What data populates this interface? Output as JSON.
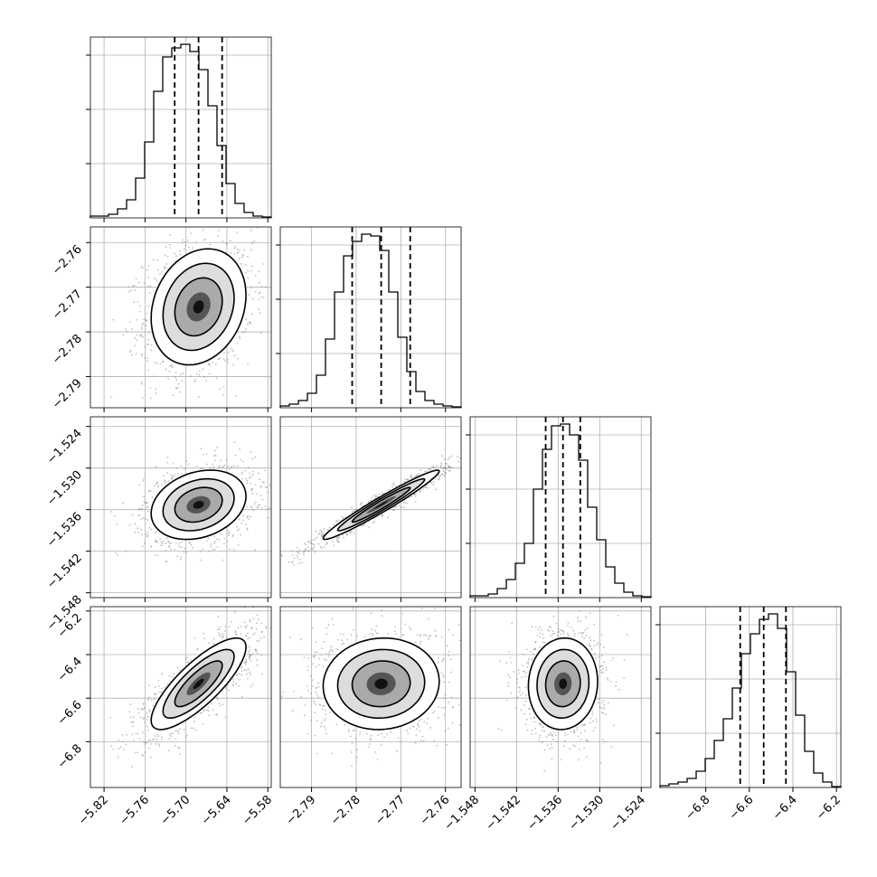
{
  "chart_data": {
    "type": "corner",
    "parameters": [
      {
        "range": [
          -5.84,
          -5.575
        ],
        "ticks": [
          "-5.82",
          "-5.76",
          "-5.70",
          "-5.64",
          "-5.58"
        ],
        "tick_values": [
          -5.82,
          -5.76,
          -5.7,
          -5.64,
          -5.58
        ],
        "quantiles": [
          -5.7165,
          -5.6815,
          -5.647
        ],
        "hist": [
          0.01,
          0.01,
          0.02,
          0.05,
          0.1,
          0.22,
          0.42,
          0.7,
          0.89,
          0.94,
          0.96,
          0.92,
          0.82,
          0.62,
          0.4,
          0.19,
          0.08,
          0.03,
          0.01,
          0.005
        ]
      },
      {
        "range": [
          -2.797,
          -2.7565
        ],
        "ticks": [
          "-2.79",
          "-2.78",
          "-2.77",
          "-2.76"
        ],
        "tick_values": [
          -2.79,
          -2.78,
          -2.77,
          -2.76
        ],
        "quantiles": [
          -2.7809,
          -2.7744,
          -2.7679
        ],
        "hist": [
          0.01,
          0.02,
          0.04,
          0.08,
          0.18,
          0.38,
          0.64,
          0.84,
          0.92,
          0.96,
          0.95,
          0.87,
          0.64,
          0.39,
          0.2,
          0.09,
          0.04,
          0.02,
          0.01,
          0.005
        ]
      },
      {
        "range": [
          -1.5487,
          -1.5226
        ],
        "ticks": [
          "-1.548",
          "-1.542",
          "-1.536",
          "-1.530",
          "-1.524"
        ],
        "tick_values": [
          -1.548,
          -1.542,
          -1.536,
          -1.53,
          -1.524
        ],
        "quantiles": [
          -1.5378,
          -1.5353,
          -1.5328
        ],
        "hist": [
          0.01,
          0.01,
          0.02,
          0.05,
          0.1,
          0.19,
          0.3,
          0.6,
          0.82,
          0.95,
          0.96,
          0.9,
          0.76,
          0.5,
          0.32,
          0.17,
          0.08,
          0.03,
          0.01,
          0.005
        ]
      },
      {
        "range": [
          -7.01,
          -6.18
        ],
        "ticks": [
          "-6.8",
          "-6.6",
          "-6.4",
          "-6.2"
        ],
        "tick_values": [
          -6.8,
          -6.6,
          -6.4,
          -6.2
        ],
        "quantiles": [
          -6.642,
          -6.534,
          -6.432
        ],
        "hist": [
          0.01,
          0.02,
          0.03,
          0.05,
          0.09,
          0.16,
          0.26,
          0.38,
          0.55,
          0.74,
          0.85,
          0.93,
          0.96,
          0.88,
          0.64,
          0.4,
          0.2,
          0.08,
          0.03,
          0.005
        ]
      }
    ],
    "pairs": [
      {
        "row": 1,
        "col": 0,
        "corr": 0.2
      },
      {
        "row": 2,
        "col": 0,
        "corr": 0.25
      },
      {
        "row": 2,
        "col": 1,
        "corr": 0.97
      },
      {
        "row": 3,
        "col": 0,
        "corr": 0.8
      },
      {
        "row": 3,
        "col": 1,
        "corr": 0.05
      },
      {
        "row": 3,
        "col": 2,
        "corr": 0.05
      }
    ],
    "contour_levels_sigma": [
      0.5,
      1.0,
      1.5,
      2.0
    ],
    "colors": {
      "hist": "#000000",
      "scatter": "#7f7f7f",
      "grid": "#b0b0b0"
    },
    "grid": true
  }
}
